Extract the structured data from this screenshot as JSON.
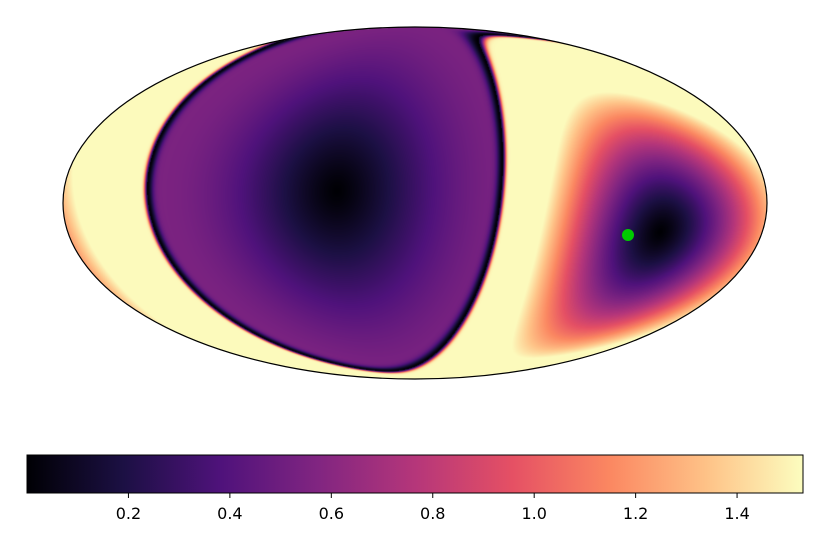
{
  "chart_data": {
    "type": "heatmap",
    "projection": "mollweide",
    "title": "",
    "colormap": "magma",
    "colorbar": {
      "orientation": "horizontal",
      "placement": "bottom",
      "range": [
        0.0,
        1.53
      ],
      "ticks": [
        0.2,
        0.4,
        0.6,
        0.8,
        1.0,
        1.2,
        1.4
      ],
      "tick_labels": [
        "0.2",
        "0.4",
        "0.6",
        "0.8",
        "1.0",
        "1.2",
        "1.4"
      ]
    },
    "marker": {
      "color": "#00cc00",
      "value": 0.0
    },
    "regions": [
      {
        "description": "dark minimum",
        "approx_value": 0.0
      },
      {
        "description": "bright band",
        "approx_value": 1.5
      },
      {
        "description": "dark minimum around marker",
        "approx_value": 0.0
      }
    ]
  }
}
